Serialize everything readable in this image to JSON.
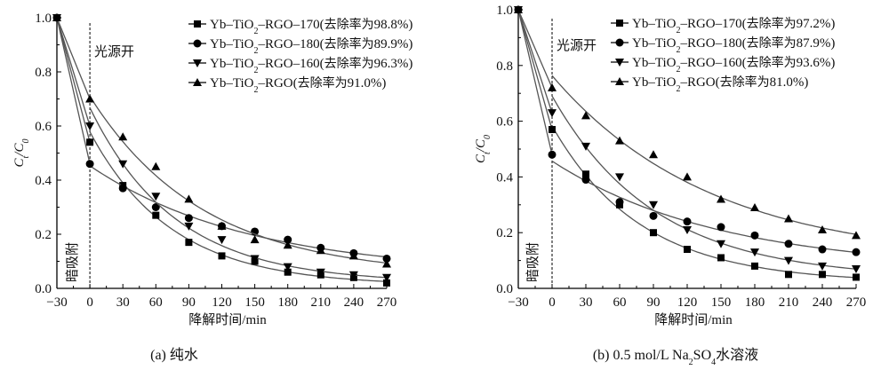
{
  "chart_data": [
    {
      "type": "scatter",
      "panel": "a",
      "caption": "(a) 纯水",
      "xlabel": "降解时间/min",
      "ylabel": "C_t/C_0",
      "ylabel_main": "C",
      "ylabel_sub1": "t",
      "ylabel_slash": "/",
      "ylabel_sub2": "0",
      "xlim": [
        -30,
        270
      ],
      "ylim": [
        0.0,
        1.0
      ],
      "x_ticks": [
        "−30",
        "0",
        "30",
        "60",
        "90",
        "120",
        "150",
        "180",
        "210",
        "240",
        "270"
      ],
      "x_tick_values": [
        -30,
        0,
        30,
        60,
        90,
        120,
        150,
        180,
        210,
        240,
        270
      ],
      "y_ticks": [
        "0.0",
        "0.2",
        "0.4",
        "0.6",
        "0.8",
        "1.0"
      ],
      "y_tick_values": [
        0.0,
        0.2,
        0.4,
        0.6,
        0.8,
        1.0
      ],
      "annotation_light": "光源开",
      "annotation_dark": "暗吸附",
      "legend_position": "top-right",
      "x": [
        -30,
        0,
        30,
        60,
        90,
        120,
        150,
        180,
        210,
        240,
        270
      ],
      "series": [
        {
          "name": "Yb–TiO2–RGO–170(去除率为98.8%)",
          "label_a": "Yb–TiO",
          "label_sub": "2",
          "label_b": "–RGO–170(去除率为98.8%)",
          "marker": "square",
          "values": [
            1.0,
            0.54,
            0.38,
            0.27,
            0.17,
            0.12,
            0.1,
            0.06,
            0.05,
            0.04,
            0.02
          ]
        },
        {
          "name": "Yb–TiO2–RGO–180(去除率为89.9%)",
          "label_a": "Yb–TiO",
          "label_sub": "2",
          "label_b": "–RGO–180(去除率为89.9%)",
          "marker": "circle",
          "values": [
            1.0,
            0.46,
            0.37,
            0.3,
            0.26,
            0.23,
            0.21,
            0.18,
            0.15,
            0.13,
            0.11
          ]
        },
        {
          "name": "Yb–TiO2–RGO–160(去除率为96.3%)",
          "label_a": "Yb–TiO",
          "label_sub": "2",
          "label_b": "–RGO–160(去除率为96.3%)",
          "marker": "triangle-down",
          "values": [
            1.0,
            0.6,
            0.46,
            0.34,
            0.23,
            0.18,
            0.11,
            0.08,
            0.06,
            0.05,
            0.04
          ]
        },
        {
          "name": "Yb–TiO2–RGO(去除率为91.0%)",
          "label_a": "Yb–TiO",
          "label_sub": "2",
          "label_b": "–RGO(去除率为91.0%)",
          "marker": "triangle-up",
          "values": [
            1.0,
            0.7,
            0.56,
            0.45,
            0.33,
            0.23,
            0.18,
            0.16,
            0.14,
            0.12,
            0.09
          ]
        }
      ]
    },
    {
      "type": "scatter",
      "panel": "b",
      "caption": "(b) 0.5 mol/L Na2SO4水溶液",
      "caption_a": "(b) 0.5 mol/L Na",
      "caption_sub1": "2",
      "caption_b": "SO",
      "caption_sub2": "4",
      "caption_c": "水溶液",
      "xlabel": "降解时间/min",
      "ylabel": "C_t/C_0",
      "ylabel_main": "C",
      "ylabel_sub1": "t",
      "ylabel_slash": "/",
      "ylabel_sub2": "0",
      "xlim": [
        -30,
        270
      ],
      "ylim": [
        0.0,
        1.0
      ],
      "x_ticks": [
        "−30",
        "0",
        "30",
        "60",
        "90",
        "120",
        "150",
        "180",
        "210",
        "240",
        "270"
      ],
      "x_tick_values": [
        -30,
        0,
        30,
        60,
        90,
        120,
        150,
        180,
        210,
        240,
        270
      ],
      "y_ticks": [
        "0.0",
        "0.2",
        "0.4",
        "0.6",
        "0.8",
        "1.0"
      ],
      "y_tick_values": [
        0.0,
        0.2,
        0.4,
        0.6,
        0.8,
        1.0
      ],
      "annotation_light": "光源开",
      "annotation_dark": "暗吸附",
      "legend_position": "top-right",
      "x": [
        -30,
        0,
        30,
        60,
        90,
        120,
        150,
        180,
        210,
        240,
        270
      ],
      "series": [
        {
          "name": "Yb–TiO2–RGO–170(去除率为97.2%)",
          "label_a": "Yb–TiO",
          "label_sub": "2",
          "label_b": "–RGO–170(去除率为97.2%)",
          "marker": "square",
          "values": [
            1.0,
            0.57,
            0.41,
            0.3,
            0.2,
            0.14,
            0.11,
            0.08,
            0.05,
            0.05,
            0.04
          ]
        },
        {
          "name": "Yb–TiO2–RGO–180(去除率为87.9%)",
          "label_a": "Yb–TiO",
          "label_sub": "2",
          "label_b": "–RGO–180(去除率为87.9%)",
          "marker": "circle",
          "values": [
            1.0,
            0.48,
            0.39,
            0.31,
            0.26,
            0.24,
            0.22,
            0.19,
            0.16,
            0.14,
            0.13
          ]
        },
        {
          "name": "Yb–TiO2–RGO–160(去除率为93.6%)",
          "label_a": "Yb–TiO",
          "label_sub": "2",
          "label_b": "–RGO–160(去除率为93.6%)",
          "marker": "triangle-down",
          "values": [
            1.0,
            0.63,
            0.51,
            0.4,
            0.3,
            0.21,
            0.16,
            0.13,
            0.1,
            0.08,
            0.07
          ]
        },
        {
          "name": "Yb–TiO2–RGO(去除率为81.0%)",
          "label_a": "Yb–TiO",
          "label_sub": "2",
          "label_b": "–RGO(去除率为81.0%)",
          "marker": "triangle-up",
          "values": [
            1.0,
            0.72,
            0.62,
            0.53,
            0.48,
            0.4,
            0.32,
            0.29,
            0.25,
            0.21,
            0.19
          ]
        }
      ]
    }
  ],
  "colors": {
    "marker": "#000000",
    "line": "#555555",
    "axis": "#000000"
  }
}
